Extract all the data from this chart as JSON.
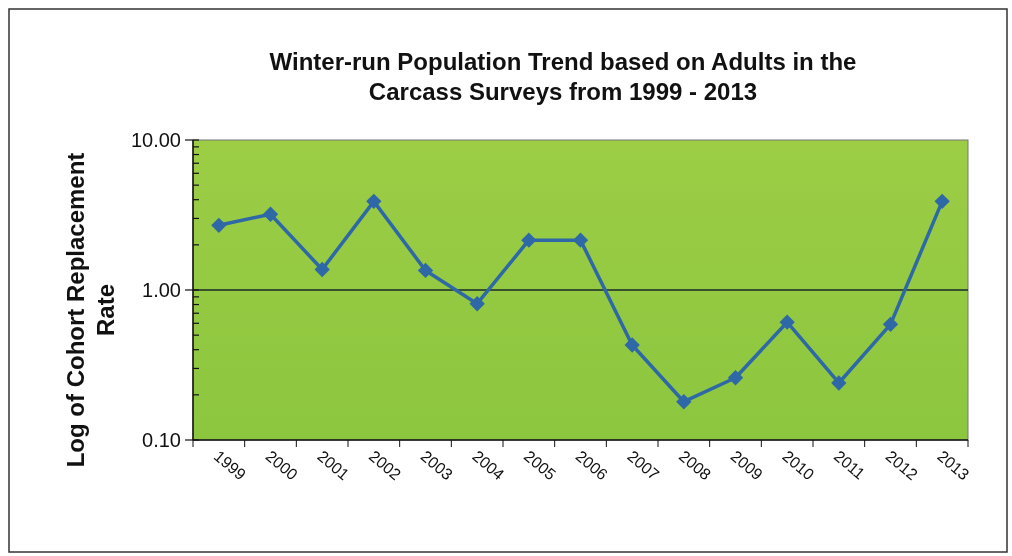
{
  "chart_data": {
    "type": "line",
    "title": "Winter-run Population Trend based on Adults in the Carcass Surveys from 1999 - 2013",
    "ylabel": "Log of Cohort Replacement Rate",
    "categories": [
      "1999",
      "2000",
      "2001",
      "2002",
      "2003",
      "2004",
      "2005",
      "2006",
      "2007",
      "2008",
      "2009",
      "2010",
      "2011",
      "2012",
      "2013"
    ],
    "series": [
      {
        "color": "#2f68a6",
        "values": [
          2.7,
          3.2,
          1.37,
          3.9,
          1.35,
          0.81,
          2.15,
          2.15,
          0.43,
          0.18,
          0.26,
          0.61,
          0.24,
          0.59,
          3.9
        ]
      }
    ],
    "log": true,
    "ylim": [
      0.1,
      10
    ],
    "yticks": [
      {
        "value": 0.1,
        "label": "0.10"
      },
      {
        "value": 0.2,
        "label": null
      },
      {
        "value": 0.3,
        "label": null
      },
      {
        "value": 0.4,
        "label": null
      },
      {
        "value": 0.5,
        "label": null
      },
      {
        "value": 0.6,
        "label": null
      },
      {
        "value": 0.7,
        "label": null
      },
      {
        "value": 0.8,
        "label": null
      },
      {
        "value": 0.9,
        "label": null
      },
      {
        "value": 1,
        "label": "1.00"
      },
      {
        "value": 2,
        "label": null
      },
      {
        "value": 3,
        "label": null
      },
      {
        "value": 4,
        "label": null
      },
      {
        "value": 5,
        "label": null
      },
      {
        "value": 6,
        "label": null
      },
      {
        "value": 7,
        "label": null
      },
      {
        "value": 8,
        "label": null
      },
      {
        "value": 9,
        "label": null
      },
      {
        "value": 10,
        "label": "10.00"
      }
    ],
    "ref_lines": [
      {
        "axis": "y",
        "value": 1,
        "color": "#1a2a2a"
      }
    ],
    "marker": "diamond",
    "line_style": "solid",
    "grid": false
  }
}
